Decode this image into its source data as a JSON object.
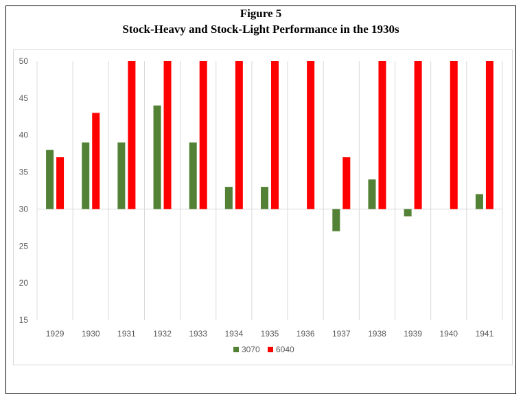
{
  "figure": {
    "label": "Figure 5",
    "title": "Stock-Heavy and Stock-Light Performance in the 1930s"
  },
  "colors": {
    "series_3070": "#538135",
    "series_6040": "#ff0000",
    "gridline": "#d9d9d9",
    "axis_text": "#595959"
  },
  "chart_data": {
    "type": "bar",
    "categories": [
      "1929",
      "1930",
      "1931",
      "1932",
      "1933",
      "1934",
      "1935",
      "1936",
      "1937",
      "1938",
      "1939",
      "1940",
      "1941"
    ],
    "series": [
      {
        "name": "3070",
        "values": [
          38,
          39,
          39,
          44,
          39,
          33,
          33,
          30,
          27,
          34,
          29,
          30,
          32
        ]
      },
      {
        "name": "6040",
        "values": [
          37,
          43,
          50,
          50,
          50,
          50,
          50,
          50,
          37,
          50,
          50,
          50,
          50
        ]
      }
    ],
    "baseline": 30,
    "ylim": [
      15,
      50
    ],
    "yticks": [
      15,
      20,
      25,
      30,
      35,
      40,
      45,
      50
    ],
    "grid": "vertical category separators",
    "legend": "bottom-center",
    "title": "",
    "xlabel": "",
    "ylabel": ""
  }
}
